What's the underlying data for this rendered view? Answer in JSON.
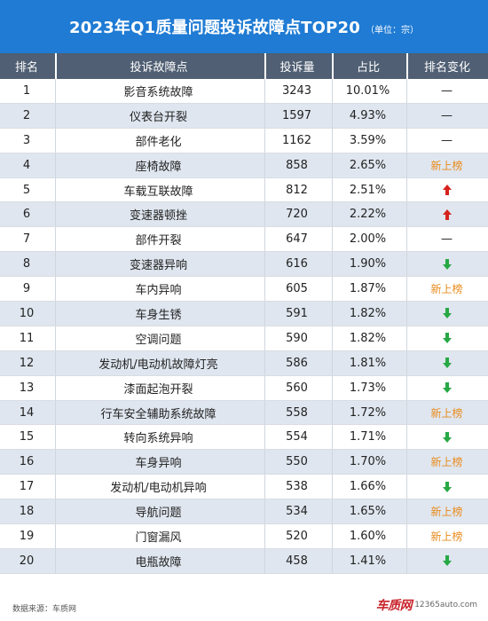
{
  "title": "2023年Q1质量问题投诉故障点TOP20",
  "unit": "（单位：宗）",
  "columns": [
    "排名",
    "投诉故障点",
    "投诉量",
    "占比",
    "排名变化"
  ],
  "rows": [
    {
      "rank": "1",
      "issue": "影音系统故障",
      "count": "3243",
      "share": "10.01%",
      "change": "—"
    },
    {
      "rank": "2",
      "issue": "仪表台开裂",
      "count": "1597",
      "share": "4.93%",
      "change": "—"
    },
    {
      "rank": "3",
      "issue": "部件老化",
      "count": "1162",
      "share": "3.59%",
      "change": "—"
    },
    {
      "rank": "4",
      "issue": "座椅故障",
      "count": "858",
      "share": "2.65%",
      "change": "新上榜"
    },
    {
      "rank": "5",
      "issue": "车载互联故障",
      "count": "812",
      "share": "2.51%",
      "change": "up"
    },
    {
      "rank": "6",
      "issue": "变速器顿挫",
      "count": "720",
      "share": "2.22%",
      "change": "up"
    },
    {
      "rank": "7",
      "issue": "部件开裂",
      "count": "647",
      "share": "2.00%",
      "change": "—"
    },
    {
      "rank": "8",
      "issue": "变速器异响",
      "count": "616",
      "share": "1.90%",
      "change": "down"
    },
    {
      "rank": "9",
      "issue": "车内异响",
      "count": "605",
      "share": "1.87%",
      "change": "新上榜"
    },
    {
      "rank": "10",
      "issue": "车身生锈",
      "count": "591",
      "share": "1.82%",
      "change": "down"
    },
    {
      "rank": "11",
      "issue": "空调问题",
      "count": "590",
      "share": "1.82%",
      "change": "down"
    },
    {
      "rank": "12",
      "issue": "发动机/电动机故障灯亮",
      "count": "586",
      "share": "1.81%",
      "change": "down"
    },
    {
      "rank": "13",
      "issue": "漆面起泡开裂",
      "count": "560",
      "share": "1.73%",
      "change": "down"
    },
    {
      "rank": "14",
      "issue": "行车安全辅助系统故障",
      "count": "558",
      "share": "1.72%",
      "change": "新上榜"
    },
    {
      "rank": "15",
      "issue": "转向系统异响",
      "count": "554",
      "share": "1.71%",
      "change": "down"
    },
    {
      "rank": "16",
      "issue": "车身异响",
      "count": "550",
      "share": "1.70%",
      "change": "新上榜"
    },
    {
      "rank": "17",
      "issue": "发动机/电动机异响",
      "count": "538",
      "share": "1.66%",
      "change": "down"
    },
    {
      "rank": "18",
      "issue": "导航问题",
      "count": "534",
      "share": "1.65%",
      "change": "新上榜"
    },
    {
      "rank": "19",
      "issue": "门窗漏风",
      "count": "520",
      "share": "1.60%",
      "change": "新上榜"
    },
    {
      "rank": "20",
      "issue": "电瓶故障",
      "count": "458",
      "share": "1.41%",
      "change": "down"
    }
  ],
  "footer": {
    "source": "数据来源：车质网",
    "logo_text": "车质网",
    "logo_url": "12365auto.com"
  },
  "colors": {
    "title_bg": "#1f7bd4",
    "header_bg": "#505f73",
    "alt_row_bg": "#dfe6ef",
    "new_badge": "#e98b1c",
    "up_arrow": "#d6231d",
    "down_arrow": "#27a844"
  },
  "icons": {
    "up": "arrow-up-icon",
    "down": "arrow-down-icon"
  }
}
